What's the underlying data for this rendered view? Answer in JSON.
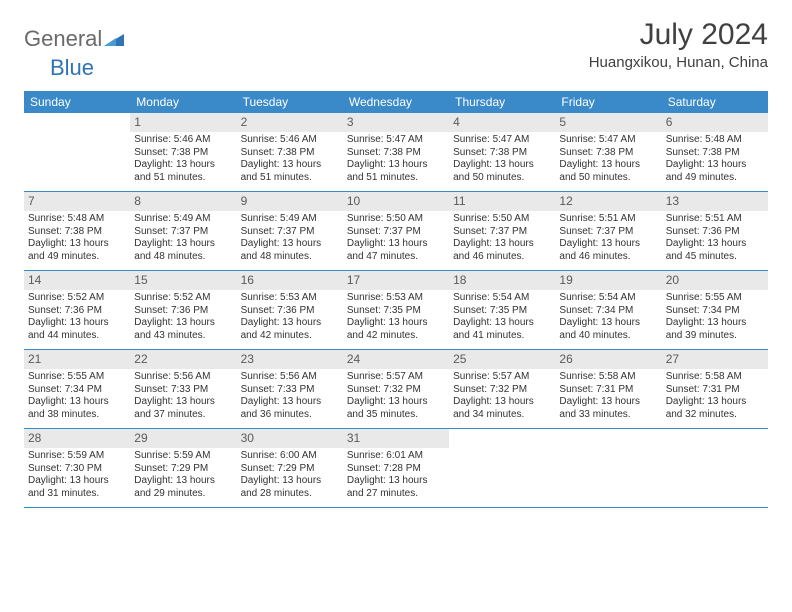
{
  "logo": {
    "part1": "General",
    "part2": "Blue"
  },
  "title": "July 2024",
  "location": "Huangxikou, Hunan, China",
  "dayNames": [
    "Sunday",
    "Monday",
    "Tuesday",
    "Wednesday",
    "Thursday",
    "Friday",
    "Saturday"
  ],
  "colors": {
    "headerBg": "#3a8ac9",
    "dayNumBg": "#e9e9e9",
    "ruleColor": "#3a8ac9",
    "logoGray": "#6a6a6a",
    "logoBlue": "#2f74b5"
  },
  "weeks": [
    [
      {
        "n": "",
        "sunrise": "",
        "sunset": "",
        "daylight1": "",
        "daylight2": ""
      },
      {
        "n": "1",
        "sunrise": "Sunrise: 5:46 AM",
        "sunset": "Sunset: 7:38 PM",
        "daylight1": "Daylight: 13 hours",
        "daylight2": "and 51 minutes."
      },
      {
        "n": "2",
        "sunrise": "Sunrise: 5:46 AM",
        "sunset": "Sunset: 7:38 PM",
        "daylight1": "Daylight: 13 hours",
        "daylight2": "and 51 minutes."
      },
      {
        "n": "3",
        "sunrise": "Sunrise: 5:47 AM",
        "sunset": "Sunset: 7:38 PM",
        "daylight1": "Daylight: 13 hours",
        "daylight2": "and 51 minutes."
      },
      {
        "n": "4",
        "sunrise": "Sunrise: 5:47 AM",
        "sunset": "Sunset: 7:38 PM",
        "daylight1": "Daylight: 13 hours",
        "daylight2": "and 50 minutes."
      },
      {
        "n": "5",
        "sunrise": "Sunrise: 5:47 AM",
        "sunset": "Sunset: 7:38 PM",
        "daylight1": "Daylight: 13 hours",
        "daylight2": "and 50 minutes."
      },
      {
        "n": "6",
        "sunrise": "Sunrise: 5:48 AM",
        "sunset": "Sunset: 7:38 PM",
        "daylight1": "Daylight: 13 hours",
        "daylight2": "and 49 minutes."
      }
    ],
    [
      {
        "n": "7",
        "sunrise": "Sunrise: 5:48 AM",
        "sunset": "Sunset: 7:38 PM",
        "daylight1": "Daylight: 13 hours",
        "daylight2": "and 49 minutes."
      },
      {
        "n": "8",
        "sunrise": "Sunrise: 5:49 AM",
        "sunset": "Sunset: 7:37 PM",
        "daylight1": "Daylight: 13 hours",
        "daylight2": "and 48 minutes."
      },
      {
        "n": "9",
        "sunrise": "Sunrise: 5:49 AM",
        "sunset": "Sunset: 7:37 PM",
        "daylight1": "Daylight: 13 hours",
        "daylight2": "and 48 minutes."
      },
      {
        "n": "10",
        "sunrise": "Sunrise: 5:50 AM",
        "sunset": "Sunset: 7:37 PM",
        "daylight1": "Daylight: 13 hours",
        "daylight2": "and 47 minutes."
      },
      {
        "n": "11",
        "sunrise": "Sunrise: 5:50 AM",
        "sunset": "Sunset: 7:37 PM",
        "daylight1": "Daylight: 13 hours",
        "daylight2": "and 46 minutes."
      },
      {
        "n": "12",
        "sunrise": "Sunrise: 5:51 AM",
        "sunset": "Sunset: 7:37 PM",
        "daylight1": "Daylight: 13 hours",
        "daylight2": "and 46 minutes."
      },
      {
        "n": "13",
        "sunrise": "Sunrise: 5:51 AM",
        "sunset": "Sunset: 7:36 PM",
        "daylight1": "Daylight: 13 hours",
        "daylight2": "and 45 minutes."
      }
    ],
    [
      {
        "n": "14",
        "sunrise": "Sunrise: 5:52 AM",
        "sunset": "Sunset: 7:36 PM",
        "daylight1": "Daylight: 13 hours",
        "daylight2": "and 44 minutes."
      },
      {
        "n": "15",
        "sunrise": "Sunrise: 5:52 AM",
        "sunset": "Sunset: 7:36 PM",
        "daylight1": "Daylight: 13 hours",
        "daylight2": "and 43 minutes."
      },
      {
        "n": "16",
        "sunrise": "Sunrise: 5:53 AM",
        "sunset": "Sunset: 7:36 PM",
        "daylight1": "Daylight: 13 hours",
        "daylight2": "and 42 minutes."
      },
      {
        "n": "17",
        "sunrise": "Sunrise: 5:53 AM",
        "sunset": "Sunset: 7:35 PM",
        "daylight1": "Daylight: 13 hours",
        "daylight2": "and 42 minutes."
      },
      {
        "n": "18",
        "sunrise": "Sunrise: 5:54 AM",
        "sunset": "Sunset: 7:35 PM",
        "daylight1": "Daylight: 13 hours",
        "daylight2": "and 41 minutes."
      },
      {
        "n": "19",
        "sunrise": "Sunrise: 5:54 AM",
        "sunset": "Sunset: 7:34 PM",
        "daylight1": "Daylight: 13 hours",
        "daylight2": "and 40 minutes."
      },
      {
        "n": "20",
        "sunrise": "Sunrise: 5:55 AM",
        "sunset": "Sunset: 7:34 PM",
        "daylight1": "Daylight: 13 hours",
        "daylight2": "and 39 minutes."
      }
    ],
    [
      {
        "n": "21",
        "sunrise": "Sunrise: 5:55 AM",
        "sunset": "Sunset: 7:34 PM",
        "daylight1": "Daylight: 13 hours",
        "daylight2": "and 38 minutes."
      },
      {
        "n": "22",
        "sunrise": "Sunrise: 5:56 AM",
        "sunset": "Sunset: 7:33 PM",
        "daylight1": "Daylight: 13 hours",
        "daylight2": "and 37 minutes."
      },
      {
        "n": "23",
        "sunrise": "Sunrise: 5:56 AM",
        "sunset": "Sunset: 7:33 PM",
        "daylight1": "Daylight: 13 hours",
        "daylight2": "and 36 minutes."
      },
      {
        "n": "24",
        "sunrise": "Sunrise: 5:57 AM",
        "sunset": "Sunset: 7:32 PM",
        "daylight1": "Daylight: 13 hours",
        "daylight2": "and 35 minutes."
      },
      {
        "n": "25",
        "sunrise": "Sunrise: 5:57 AM",
        "sunset": "Sunset: 7:32 PM",
        "daylight1": "Daylight: 13 hours",
        "daylight2": "and 34 minutes."
      },
      {
        "n": "26",
        "sunrise": "Sunrise: 5:58 AM",
        "sunset": "Sunset: 7:31 PM",
        "daylight1": "Daylight: 13 hours",
        "daylight2": "and 33 minutes."
      },
      {
        "n": "27",
        "sunrise": "Sunrise: 5:58 AM",
        "sunset": "Sunset: 7:31 PM",
        "daylight1": "Daylight: 13 hours",
        "daylight2": "and 32 minutes."
      }
    ],
    [
      {
        "n": "28",
        "sunrise": "Sunrise: 5:59 AM",
        "sunset": "Sunset: 7:30 PM",
        "daylight1": "Daylight: 13 hours",
        "daylight2": "and 31 minutes."
      },
      {
        "n": "29",
        "sunrise": "Sunrise: 5:59 AM",
        "sunset": "Sunset: 7:29 PM",
        "daylight1": "Daylight: 13 hours",
        "daylight2": "and 29 minutes."
      },
      {
        "n": "30",
        "sunrise": "Sunrise: 6:00 AM",
        "sunset": "Sunset: 7:29 PM",
        "daylight1": "Daylight: 13 hours",
        "daylight2": "and 28 minutes."
      },
      {
        "n": "31",
        "sunrise": "Sunrise: 6:01 AM",
        "sunset": "Sunset: 7:28 PM",
        "daylight1": "Daylight: 13 hours",
        "daylight2": "and 27 minutes."
      },
      {
        "n": "",
        "sunrise": "",
        "sunset": "",
        "daylight1": "",
        "daylight2": ""
      },
      {
        "n": "",
        "sunrise": "",
        "sunset": "",
        "daylight1": "",
        "daylight2": ""
      },
      {
        "n": "",
        "sunrise": "",
        "sunset": "",
        "daylight1": "",
        "daylight2": ""
      }
    ]
  ]
}
